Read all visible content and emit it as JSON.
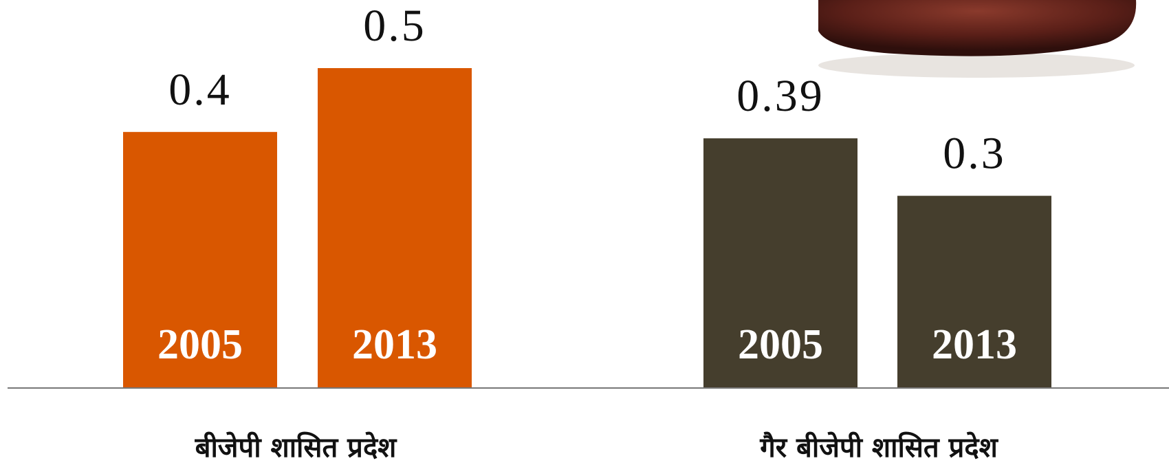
{
  "chart_data": {
    "type": "bar",
    "groups": [
      {
        "name": "बीजेपी शासित प्रदेश",
        "color": "#d95700",
        "categories": [
          "2005",
          "2013"
        ],
        "values": [
          0.4,
          0.5
        ]
      },
      {
        "name": "गैर बीजेपी शासित प्रदेश",
        "color": "#453e2d",
        "categories": [
          "2005",
          "2013"
        ],
        "values": [
          0.39,
          0.3
        ]
      }
    ]
  }
}
